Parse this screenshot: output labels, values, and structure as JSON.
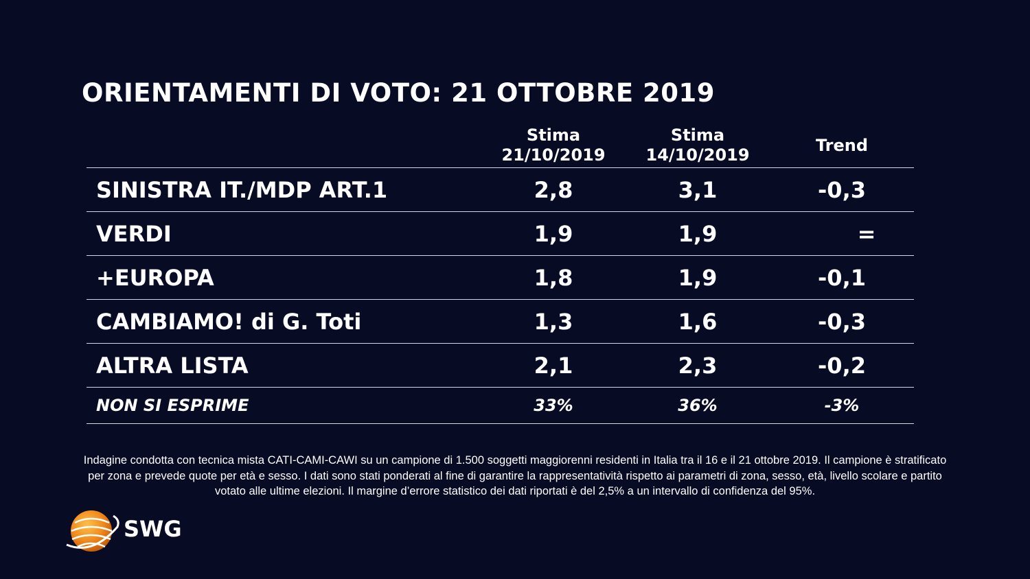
{
  "title": "ORIENTAMENTI DI VOTO: 21 OTTOBRE 2019",
  "chart_data": {
    "type": "table",
    "columns": [
      {
        "line1": "Stima",
        "line2": "21/10/2019"
      },
      {
        "line1": "Stima",
        "line2": "14/10/2019"
      },
      {
        "line1": "Trend",
        "line2": ""
      }
    ],
    "rows": [
      {
        "party": "SINISTRA IT./MDP ART.1",
        "v1": "2,8",
        "v2": "3,1",
        "trend": "-0,3"
      },
      {
        "party": "VERDI",
        "v1": "1,9",
        "v2": "1,9",
        "trend": "="
      },
      {
        "party": "+EUROPA",
        "v1": "1,8",
        "v2": "1,9",
        "trend": "-0,1"
      },
      {
        "party": "CAMBIAMO! di G. Toti",
        "v1": "1,3",
        "v2": "1,6",
        "trend": "-0,3"
      },
      {
        "party": "ALTRA LISTA",
        "v1": "2,1",
        "v2": "2,3",
        "trend": "-0,2"
      }
    ],
    "summary_row": {
      "party": "NON SI ESPRIME",
      "v1": "33%",
      "v2": "36%",
      "trend": "-3%"
    }
  },
  "footnote": "Indagine condotta con tecnica mista CATI-CAMI-CAWI su un campione di 1.500 soggetti maggiorenni residenti in Italia tra il 16 e il 21 ottobre 2019. Il campione è stratificato per zona e prevede quote per età e sesso. I dati sono stati ponderati al fine di garantire la rappresentatività rispetto ai parametri di zona, sesso, età, livello scolare e partito votato alle ultime elezioni. Il margine d’errore statistico dei dati riportati è del 2,5% a un intervallo di confidenza del 95%.",
  "logo": {
    "text": "SWG",
    "icon": "globe-icon",
    "accent": "#f08a1c"
  },
  "colors": {
    "background": "#080b24",
    "text": "#ffffff",
    "rule": "#d8dbe6"
  }
}
